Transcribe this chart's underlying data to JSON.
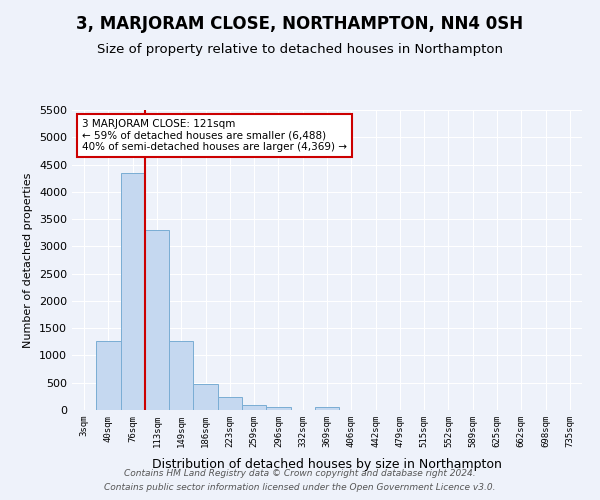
{
  "title": "3, MARJORAM CLOSE, NORTHAMPTON, NN4 0SH",
  "subtitle": "Size of property relative to detached houses in Northampton",
  "xlabel": "Distribution of detached houses by size in Northampton",
  "ylabel": "Number of detached properties",
  "bin_labels": [
    "3sqm",
    "40sqm",
    "76sqm",
    "113sqm",
    "149sqm",
    "186sqm",
    "223sqm",
    "259sqm",
    "296sqm",
    "332sqm",
    "369sqm",
    "406sqm",
    "442sqm",
    "479sqm",
    "515sqm",
    "552sqm",
    "589sqm",
    "625sqm",
    "662sqm",
    "698sqm",
    "735sqm"
  ],
  "bin_values": [
    0,
    1270,
    4340,
    3300,
    1270,
    480,
    230,
    90,
    60,
    0,
    60,
    0,
    0,
    0,
    0,
    0,
    0,
    0,
    0,
    0,
    0
  ],
  "bar_color": "#c5d8f0",
  "bar_edge_color": "#7aadd4",
  "vline_color": "#cc0000",
  "annotation_title": "3 MARJORAM CLOSE: 121sqm",
  "annotation_line1": "← 59% of detached houses are smaller (6,488)",
  "annotation_line2": "40% of semi-detached houses are larger (4,369) →",
  "annotation_box_color": "#ffffff",
  "annotation_box_edge_color": "#cc0000",
  "ylim": [
    0,
    5500
  ],
  "yticks": [
    0,
    500,
    1000,
    1500,
    2000,
    2500,
    3000,
    3500,
    4000,
    4500,
    5000,
    5500
  ],
  "footer_line1": "Contains HM Land Registry data © Crown copyright and database right 2024.",
  "footer_line2": "Contains public sector information licensed under the Open Government Licence v3.0.",
  "bg_color": "#eef2fa",
  "grid_color": "#ffffff",
  "title_fontsize": 12,
  "subtitle_fontsize": 9.5
}
